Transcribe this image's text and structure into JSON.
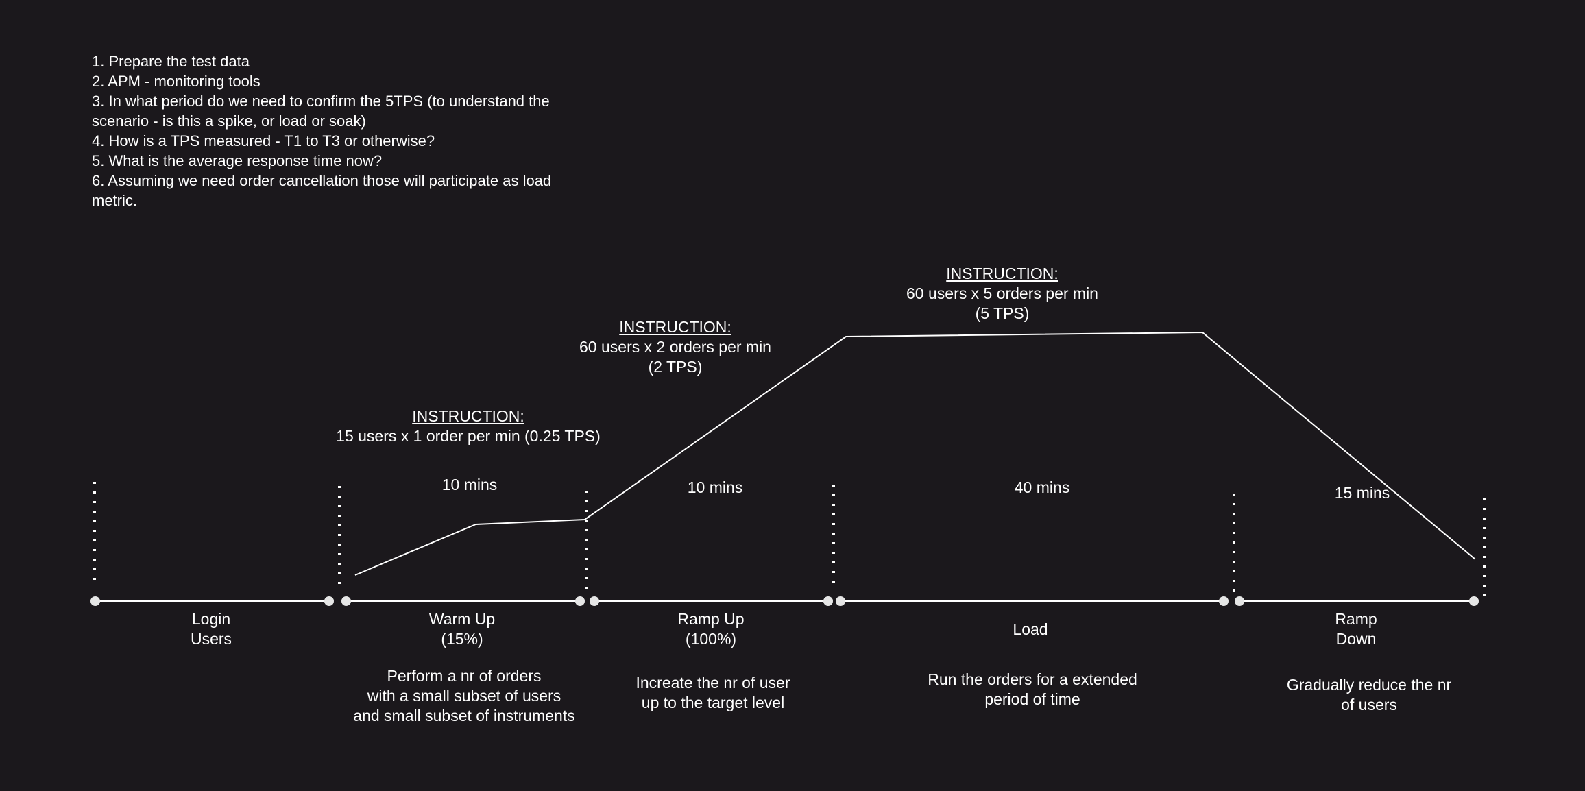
{
  "notes": [
    "1. Prepare the test data",
    "2. APM - monitoring tools",
    "3. In what period do we need to confirm the 5TPS (to understand the scenario - is this a spike, or load or soak)",
    "4. How is a TPS measured - T1 to T3 or otherwise?",
    "5. What is the average response time now?",
    "6. Assuming we need order cancellation those will participate as load metric."
  ],
  "instructions": [
    {
      "heading": "INSTRUCTION:",
      "line1": "15 users x 1 order per min (0.25 TPS)",
      "line2": ""
    },
    {
      "heading": "INSTRUCTION:",
      "line1": "60 users x 2 orders per min",
      "line2": "(2 TPS)"
    },
    {
      "heading": "INSTRUCTION:",
      "line1": "60 users x 5 orders per min",
      "line2": "(5 TPS)"
    }
  ],
  "durations": [
    "10 mins",
    "10 mins",
    "40 mins",
    "15 mins"
  ],
  "phases": [
    {
      "line1": "Login",
      "line2": "Users",
      "description": []
    },
    {
      "line1": "Warm Up",
      "line2": "(15%)",
      "description": [
        "Perform a nr of orders",
        "with a small subset of users",
        "and small subset of instruments"
      ]
    },
    {
      "line1": "Ramp Up",
      "line2": "(100%)",
      "description": [
        "Increate the nr of user",
        "up to the target level"
      ]
    },
    {
      "line1": "Load",
      "line2": "",
      "description": [
        "Run the orders for a extended",
        "period of time"
      ]
    },
    {
      "line1": "Ramp",
      "line2": "Down",
      "description": [
        "Gradually reduce the nr",
        "of users"
      ]
    }
  ],
  "colors": {
    "background": "#1b181c",
    "foreground": "#ffffff",
    "node": "#e6e6e6"
  }
}
